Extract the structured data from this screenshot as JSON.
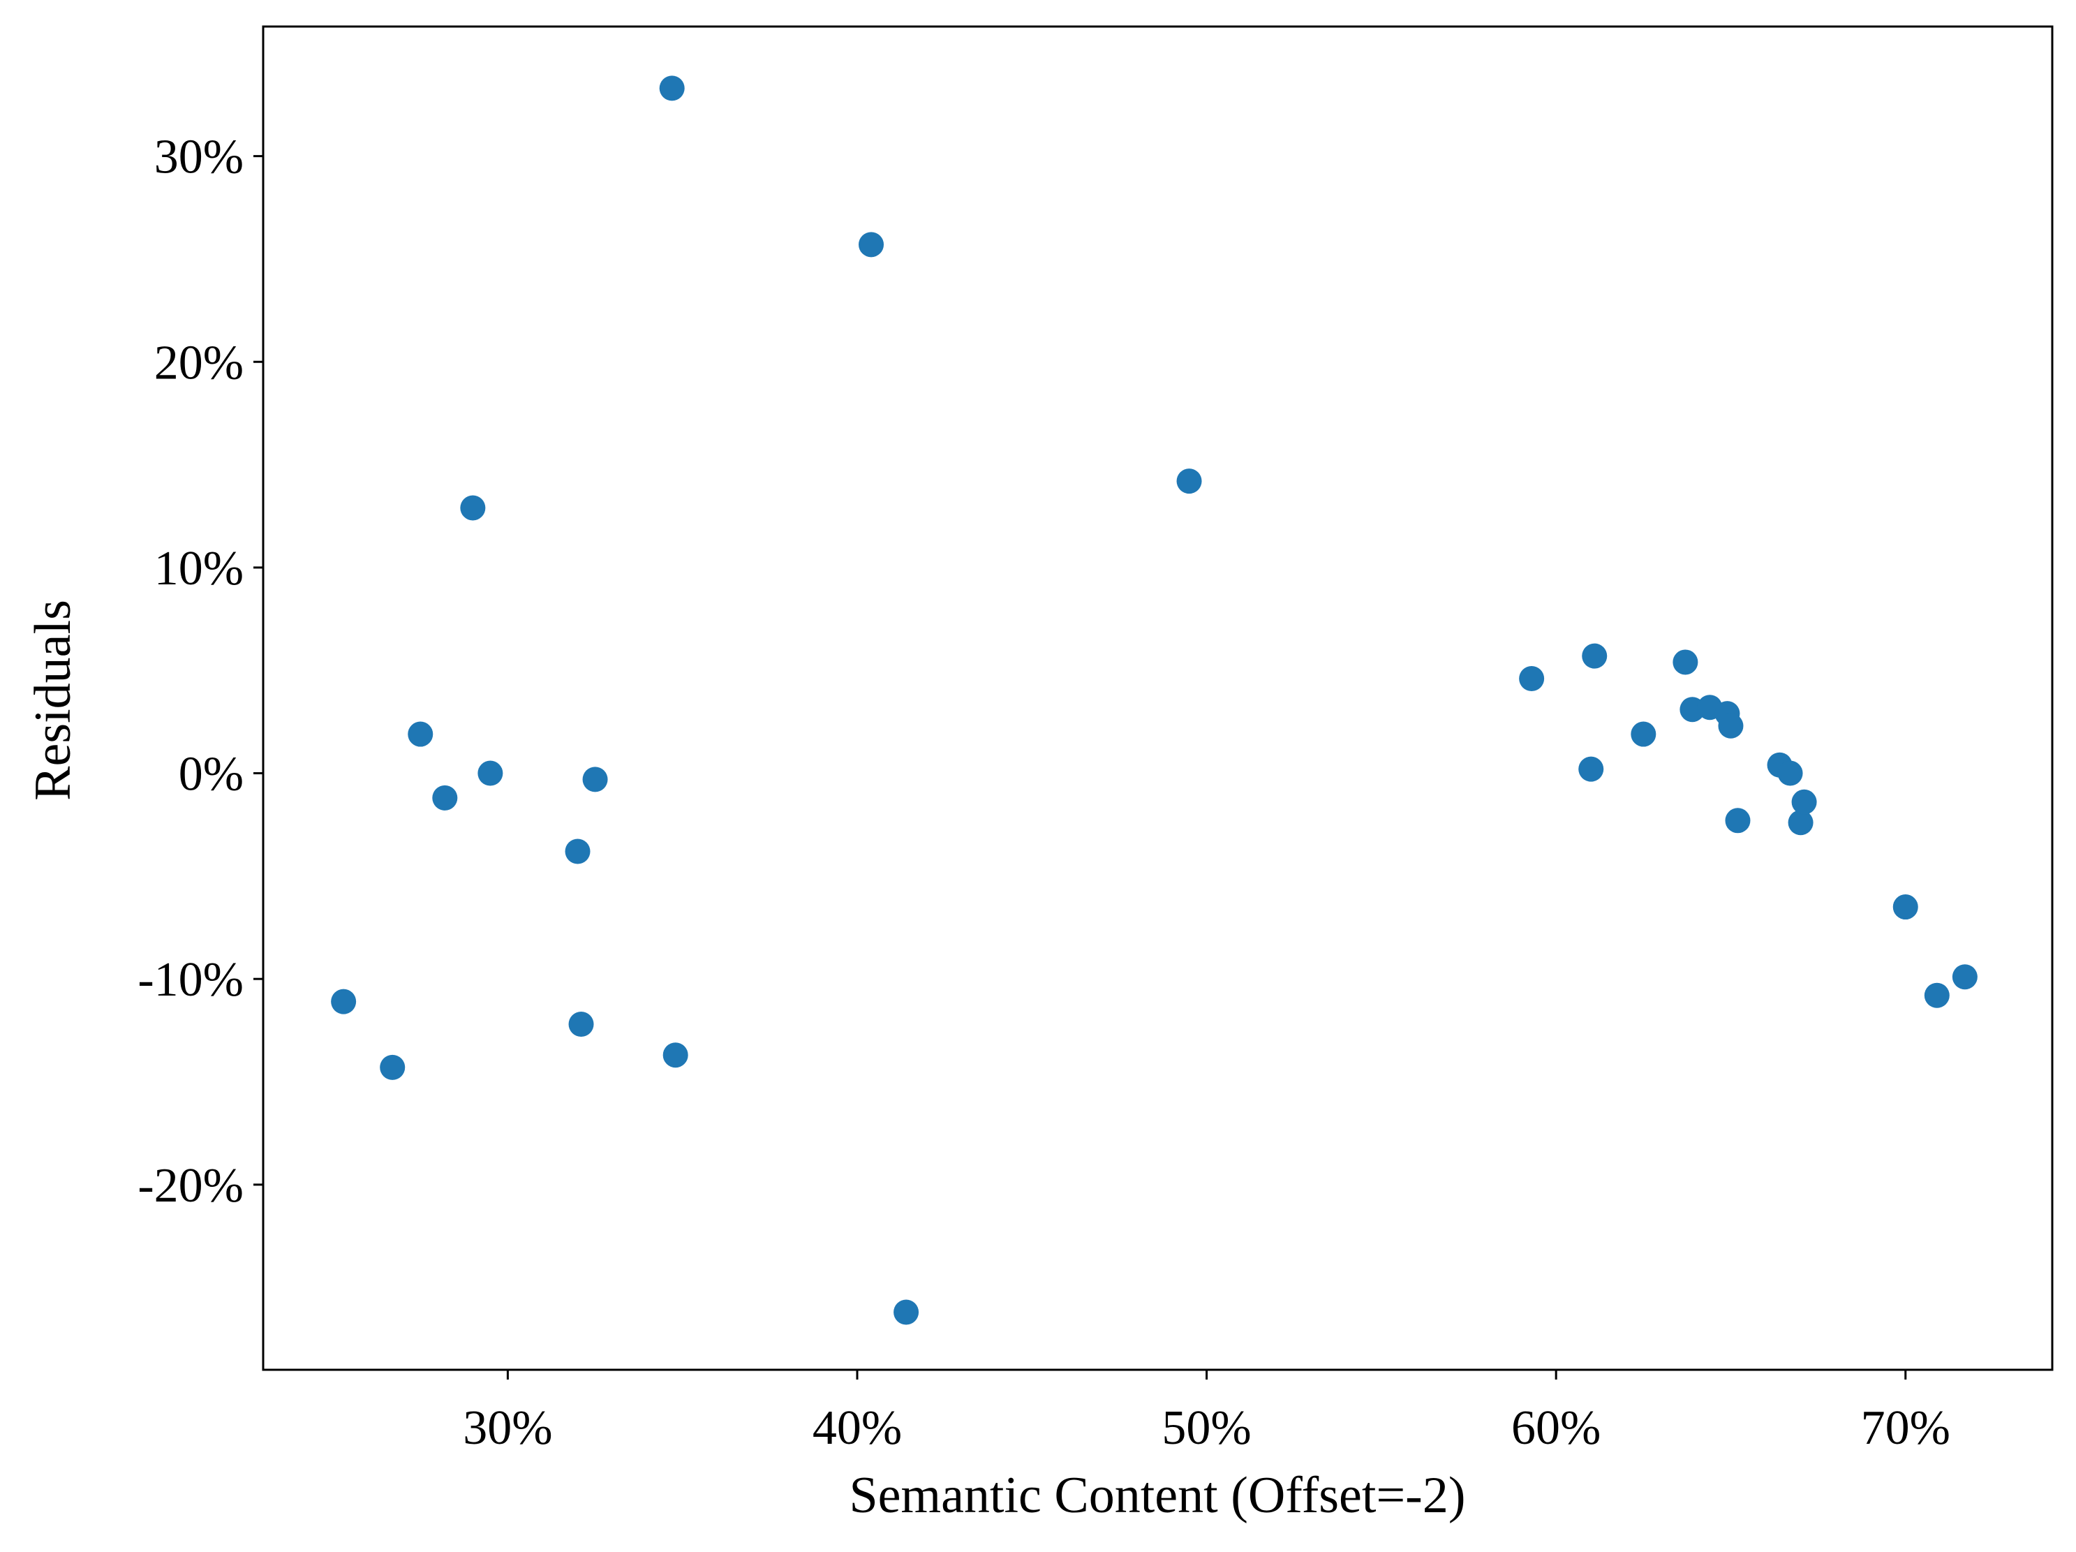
{
  "chart_data": {
    "type": "scatter",
    "title": "",
    "xlabel": "Semantic Content (Offset=-2)",
    "ylabel": "Residuals",
    "xlim": [
      0.23,
      0.742
    ],
    "ylim": [
      -0.29,
      0.363
    ],
    "xticks": [
      {
        "value": 0.3,
        "label": "30%"
      },
      {
        "value": 0.4,
        "label": "40%"
      },
      {
        "value": 0.5,
        "label": "50%"
      },
      {
        "value": 0.6,
        "label": "60%"
      },
      {
        "value": 0.7,
        "label": "70%"
      }
    ],
    "yticks": [
      {
        "value": -0.2,
        "label": "-20%"
      },
      {
        "value": -0.1,
        "label": "-10%"
      },
      {
        "value": 0.0,
        "label": "0%"
      },
      {
        "value": 0.1,
        "label": "10%"
      },
      {
        "value": 0.2,
        "label": "20%"
      },
      {
        "value": 0.3,
        "label": "30%"
      }
    ],
    "grid": false,
    "marker_color": "#1f77b4",
    "points": [
      {
        "x": 0.253,
        "y": -0.111
      },
      {
        "x": 0.267,
        "y": -0.143
      },
      {
        "x": 0.275,
        "y": 0.019
      },
      {
        "x": 0.282,
        "y": -0.012
      },
      {
        "x": 0.29,
        "y": 0.129
      },
      {
        "x": 0.295,
        "y": 0.0
      },
      {
        "x": 0.32,
        "y": -0.038
      },
      {
        "x": 0.321,
        "y": -0.122
      },
      {
        "x": 0.325,
        "y": -0.003
      },
      {
        "x": 0.347,
        "y": 0.333
      },
      {
        "x": 0.348,
        "y": -0.137
      },
      {
        "x": 0.404,
        "y": 0.257
      },
      {
        "x": 0.414,
        "y": -0.262
      },
      {
        "x": 0.495,
        "y": 0.142
      },
      {
        "x": 0.593,
        "y": 0.046
      },
      {
        "x": 0.61,
        "y": 0.002
      },
      {
        "x": 0.611,
        "y": 0.057
      },
      {
        "x": 0.625,
        "y": 0.019
      },
      {
        "x": 0.637,
        "y": 0.054
      },
      {
        "x": 0.639,
        "y": 0.031
      },
      {
        "x": 0.644,
        "y": 0.032
      },
      {
        "x": 0.649,
        "y": 0.029
      },
      {
        "x": 0.65,
        "y": 0.023
      },
      {
        "x": 0.652,
        "y": -0.023
      },
      {
        "x": 0.664,
        "y": 0.004
      },
      {
        "x": 0.667,
        "y": 0.0
      },
      {
        "x": 0.67,
        "y": -0.024
      },
      {
        "x": 0.671,
        "y": -0.014
      },
      {
        "x": 0.7,
        "y": -0.065
      },
      {
        "x": 0.709,
        "y": -0.108
      },
      {
        "x": 0.717,
        "y": -0.099
      }
    ]
  }
}
